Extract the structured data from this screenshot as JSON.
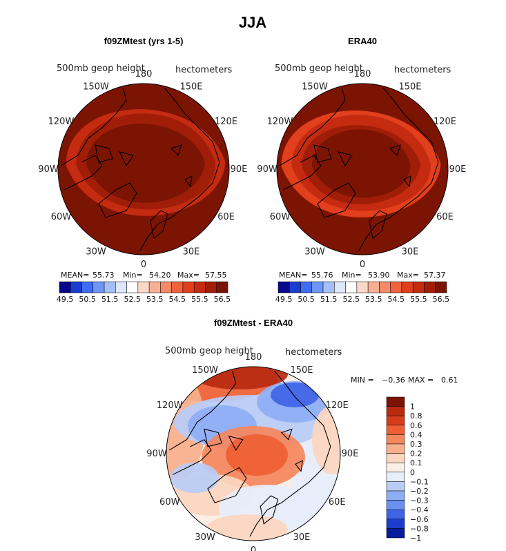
{
  "page_title": "JJA",
  "chart_data": [
    {
      "type": "heatmap",
      "title": "f09ZMtest (yrs 1-5)",
      "left_label": "500mb geop height",
      "right_label": "hectometers",
      "longitudes": [
        "180",
        "150E",
        "120E",
        "90E",
        "60E",
        "30E",
        "0",
        "30W",
        "60W",
        "90W",
        "120W",
        "150W"
      ],
      "stats": {
        "mean_label": "MEAN=",
        "mean": "55.73",
        "min_label": "Min=",
        "min": "54.20",
        "max_label": "Max=",
        "max": "57.55"
      },
      "levels": [
        "49.5",
        "50.5",
        "51.5",
        "52.5",
        "53.5",
        "54.5",
        "55.5",
        "56.5"
      ],
      "contours": [
        54.5,
        55.0,
        55.5,
        56.0,
        56.5,
        57.0
      ]
    },
    {
      "type": "heatmap",
      "title": "ERA40",
      "left_label": "500mb geop height",
      "right_label": "hectometers",
      "longitudes": [
        "180",
        "150E",
        "120E",
        "90E",
        "60E",
        "30E",
        "0",
        "30W",
        "60W",
        "90W",
        "120W",
        "150W"
      ],
      "stats": {
        "mean_label": "MEAN=",
        "mean": "55.76",
        "min_label": "Min=",
        "min": "53.90",
        "max_label": "Max=",
        "max": "57.37"
      },
      "levels": [
        "49.5",
        "50.5",
        "51.5",
        "52.5",
        "53.5",
        "54.5",
        "55.5",
        "56.5"
      ],
      "contours": [
        54.0,
        54.5,
        55.0,
        55.5,
        56.0,
        56.5,
        57.0
      ]
    },
    {
      "type": "heatmap",
      "title": "f09ZMtest - ERA40",
      "left_label": "500mb geop height",
      "right_label": "hectometers",
      "longitudes": [
        "180",
        "150E",
        "120E",
        "90E",
        "60E",
        "30E",
        "0",
        "30W",
        "60W",
        "90W",
        "120W",
        "150W"
      ],
      "stats": {
        "min_label": "MIN =",
        "min": "−0.36",
        "max_label": "MAX =",
        "max": "0.61"
      },
      "levels": [
        "1",
        "0.8",
        "0.6",
        "0.4",
        "0.3",
        "0.2",
        "0.1",
        "0",
        "−0.1",
        "−0.2",
        "−0.3",
        "−0.4",
        "−0.6",
        "−0.8",
        "−1"
      ]
    }
  ],
  "colors": {
    "abs_scale": [
      "#08088a",
      "#1a3fd0",
      "#3f6cf0",
      "#6d96f5",
      "#a5c0f8",
      "#dde8fb",
      "#ffffff",
      "#fbd8c8",
      "#f8b095",
      "#f58a66",
      "#f1623c",
      "#e23f1c",
      "#c42b10",
      "#a01e08",
      "#7c1404"
    ],
    "diff_scale": [
      "#7c1404",
      "#b92a10",
      "#d83c1b",
      "#ef5f35",
      "#f5875d",
      "#f8b08c",
      "#fbd6c0",
      "#fbeee4",
      "#e6eefb",
      "#b8ccf6",
      "#8eaef5",
      "#6a90f0",
      "#3f64e6",
      "#1c3ed0",
      "#061a9c"
    ]
  }
}
